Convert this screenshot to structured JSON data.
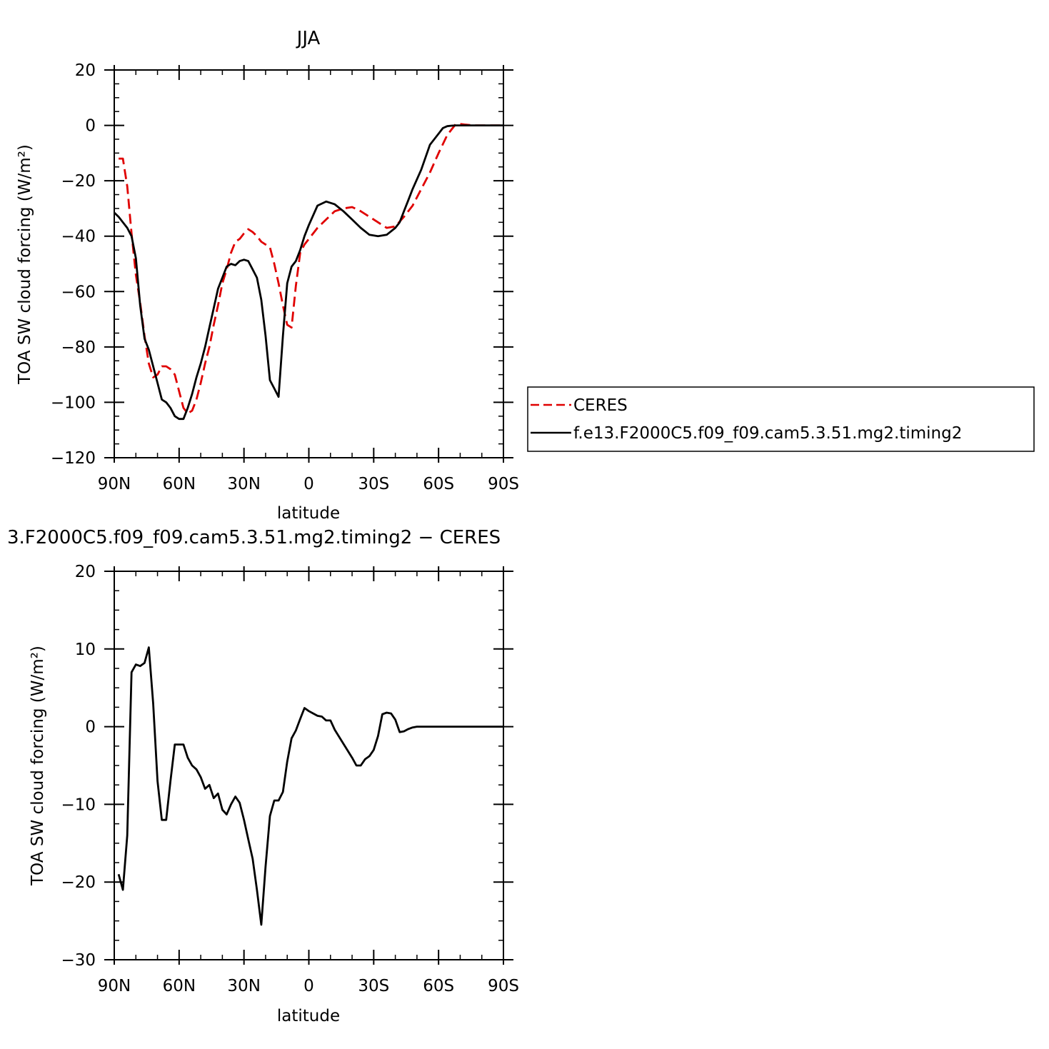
{
  "chart_data": [
    {
      "type": "line",
      "title": "JJA",
      "xlabel": "latitude",
      "ylabel": "TOA SW cloud forcing (W/m²)",
      "xlim": [
        90,
        -90
      ],
      "ylim": [
        -120,
        20
      ],
      "xticks": [
        90,
        60,
        30,
        0,
        -30,
        -60,
        -90
      ],
      "xtick_labels": [
        "90N",
        "60N",
        "30N",
        "0",
        "30S",
        "60S",
        "90S"
      ],
      "yticks": [
        20,
        0,
        -20,
        -40,
        -60,
        -80,
        -100,
        -120
      ],
      "ytick_labels": [
        "20",
        "0",
        "−20",
        "−40",
        "−60",
        "−80",
        "−100",
        "−120"
      ],
      "legend_position": "right",
      "series": [
        {
          "name": "CERES",
          "color": "#e00000",
          "style": "dashed",
          "x": [
            88,
            86,
            84,
            82,
            80,
            78,
            76,
            74,
            72,
            70,
            68,
            66,
            64,
            62,
            60,
            58,
            56,
            54,
            52,
            50,
            48,
            46,
            44,
            42,
            40,
            38,
            36,
            34,
            32,
            30,
            28,
            26,
            24,
            22,
            20,
            18,
            16,
            14,
            12,
            10,
            8,
            6,
            4,
            2,
            0,
            -4,
            -8,
            -12,
            -16,
            -20,
            -24,
            -28,
            -32,
            -36,
            -40,
            -44,
            -48,
            -52,
            -56,
            -60,
            -64,
            -68,
            -70,
            -72,
            -76,
            -80,
            -84,
            -88,
            -90
          ],
          "y": [
            -12,
            -12,
            -22,
            -39,
            -54,
            -64,
            -76,
            -86,
            -91,
            -90,
            -87,
            -87,
            -88,
            -90,
            -96,
            -102,
            -104,
            -103,
            -99,
            -93,
            -86,
            -80,
            -72,
            -65,
            -57,
            -52,
            -46,
            -42,
            -41,
            -39,
            -37.5,
            -38.5,
            -40,
            -42,
            -43,
            -44,
            -50,
            -57,
            -65,
            -72,
            -73,
            -58,
            -46,
            -43,
            -41,
            -37,
            -34,
            -31,
            -30,
            -29.5,
            -31,
            -33,
            -35,
            -37,
            -36.5,
            -33,
            -29,
            -23,
            -17,
            -10,
            -3.5,
            0.5,
            0.5,
            0.3,
            0,
            0,
            0,
            0,
            0
          ]
        },
        {
          "name": "f.e13.F2000C5.f09_f09.cam5.3.51.mg2.timing2",
          "color": "#000000",
          "style": "solid",
          "x": [
            90,
            88,
            86,
            84,
            82,
            80,
            78,
            76,
            74,
            72,
            70,
            68,
            66,
            64,
            62,
            60,
            58,
            56,
            54,
            52,
            50,
            48,
            46,
            44,
            42,
            40,
            38,
            36,
            34,
            32,
            30,
            28,
            26,
            24,
            22,
            20,
            18,
            16,
            14,
            12,
            10,
            8,
            6,
            4,
            2,
            0,
            -4,
            -8,
            -12,
            -16,
            -20,
            -24,
            -28,
            -32,
            -36,
            -40,
            -42,
            -44,
            -46,
            -48,
            -52,
            -56,
            -60,
            -62,
            -64,
            -66,
            -68,
            -72,
            -76,
            -80,
            -84,
            -88,
            -90
          ],
          "y": [
            -31.5,
            -33,
            -35,
            -37,
            -40,
            -48,
            -65,
            -77,
            -81,
            -87,
            -93,
            -99,
            -100,
            -102,
            -105,
            -106,
            -106,
            -102,
            -97,
            -91,
            -86,
            -80,
            -73,
            -66,
            -59,
            -55,
            -51,
            -50,
            -50.5,
            -49,
            -48.5,
            -49,
            -52,
            -55,
            -63,
            -76,
            -92,
            -95,
            -98,
            -76,
            -57,
            -51,
            -49,
            -45,
            -40,
            -36,
            -29,
            -27.5,
            -28.5,
            -31,
            -34,
            -37,
            -39.5,
            -40,
            -39.5,
            -37,
            -35,
            -31,
            -27,
            -23,
            -16,
            -7,
            -3,
            -1,
            -0.3,
            -0.1,
            0,
            0,
            0,
            0,
            0,
            0,
            0
          ]
        }
      ]
    },
    {
      "type": "line",
      "title": "3.F2000C5.f09_f09.cam5.3.51.mg2.timing2 − CERES",
      "xlabel": "latitude",
      "ylabel": "TOA SW cloud forcing (W/m²)",
      "xlim": [
        90,
        -90
      ],
      "ylim": [
        -30,
        20
      ],
      "xticks": [
        90,
        60,
        30,
        0,
        -30,
        -60,
        -90
      ],
      "xtick_labels": [
        "90N",
        "60N",
        "30N",
        "0",
        "30S",
        "60S",
        "90S"
      ],
      "yticks": [
        20,
        10,
        0,
        -10,
        -20,
        -30
      ],
      "ytick_labels": [
        "20",
        "10",
        "0",
        "−10",
        "−20",
        "−30"
      ],
      "series": [
        {
          "color": "#000000",
          "style": "solid",
          "x": [
            88,
            86,
            84,
            82,
            80,
            78,
            76,
            74,
            72,
            70,
            68,
            66,
            64,
            62,
            60,
            58,
            56,
            54,
            52,
            50,
            48,
            46,
            44,
            42,
            40,
            38,
            36,
            34,
            32,
            30,
            28,
            26,
            24,
            22,
            20,
            18,
            16,
            14,
            12,
            10,
            8,
            6,
            4,
            2,
            0,
            -2,
            -4,
            -6,
            -8,
            -10,
            -12,
            -16,
            -20,
            -22,
            -24,
            -26,
            -28,
            -30,
            -32,
            -34,
            -36,
            -38,
            -40,
            -42,
            -44,
            -46,
            -48,
            -50,
            -52,
            -54,
            -56,
            -58,
            -60,
            -62,
            -64,
            -66,
            -68,
            -70,
            -72,
            -74,
            -76,
            -80,
            -84,
            -88,
            -90
          ],
          "y": [
            -19,
            -21,
            -14,
            7,
            8,
            7.8,
            8.2,
            10.2,
            3,
            -7,
            -12,
            -12,
            -7,
            -2.3,
            -2.3,
            -2.3,
            -4,
            -5,
            -5.5,
            -6.5,
            -8,
            -7.5,
            -9.2,
            -8.6,
            -10.7,
            -11.3,
            -10,
            -9,
            -9.8,
            -12,
            -14.5,
            -17,
            -21,
            -25.5,
            -18,
            -11.5,
            -9.5,
            -9.5,
            -8.4,
            -4.5,
            -1.5,
            -0.5,
            1,
            2.4,
            2,
            1.7,
            1.4,
            1.3,
            0.8,
            0.8,
            -0.4,
            -2.2,
            -4,
            -5,
            -5,
            -4.2,
            -3.8,
            -3,
            -1.2,
            1.6,
            1.8,
            1.7,
            0.9,
            -0.7,
            -0.6,
            -0.3,
            -0.1,
            0,
            0,
            0,
            0,
            0,
            0,
            0,
            0,
            0,
            0,
            0,
            0,
            0,
            0,
            0,
            0,
            0,
            0
          ]
        }
      ]
    }
  ]
}
